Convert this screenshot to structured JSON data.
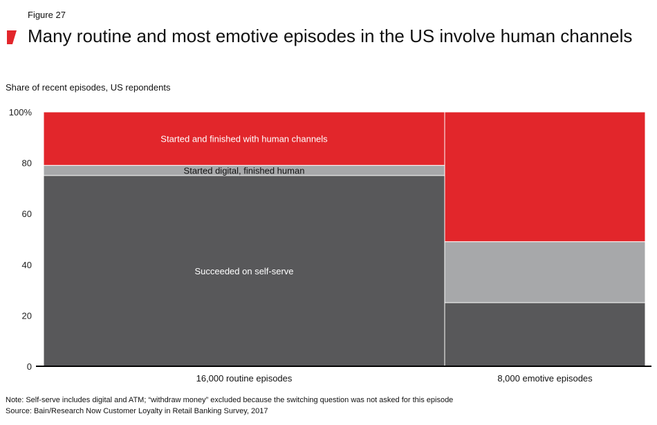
{
  "figure_label": "Figure 27",
  "title": "Many routine and most emotive episodes in the US involve human channels",
  "subtitle": "Share of recent episodes, US repondents",
  "notes": {
    "note": "Note: Self-serve includes digital and ATM; “withdraw money” excluded because the switching question was not asked for this episode",
    "source": "Source: Bain/Research Now Customer Loyalty in Retail Banking Survey, 2017"
  },
  "colors": {
    "accent": "#e2262b",
    "self_serve": "#58585a",
    "digital_human": "#a7a8aa",
    "human": "#e2262b"
  },
  "chart_data": {
    "type": "bar",
    "variant": "stacked-100-variable-width",
    "categories": [
      "16,000 routine episodes",
      "8,000 emotive episodes"
    ],
    "widths": [
      16000,
      8000
    ],
    "ylim": [
      0,
      100
    ],
    "yticks": [
      0,
      20,
      40,
      60,
      80,
      100
    ],
    "ytick_labels": [
      "0",
      "20",
      "40",
      "60",
      "80",
      "100%"
    ],
    "grid": false,
    "legend": "inline",
    "series": [
      {
        "name": "Succeeded on self-serve",
        "values": [
          75,
          25
        ],
        "color": "#58585a",
        "label_color": "#ffffff",
        "label_on": 0
      },
      {
        "name": "Started digital, finished human",
        "values": [
          4,
          24
        ],
        "color": "#a7a8aa",
        "label_color": "#111111",
        "label_on": 0
      },
      {
        "name": "Started and finished with human channels",
        "values": [
          21,
          51
        ],
        "color": "#e2262b",
        "label_color": "#ffffff",
        "label_on": 0
      }
    ]
  }
}
